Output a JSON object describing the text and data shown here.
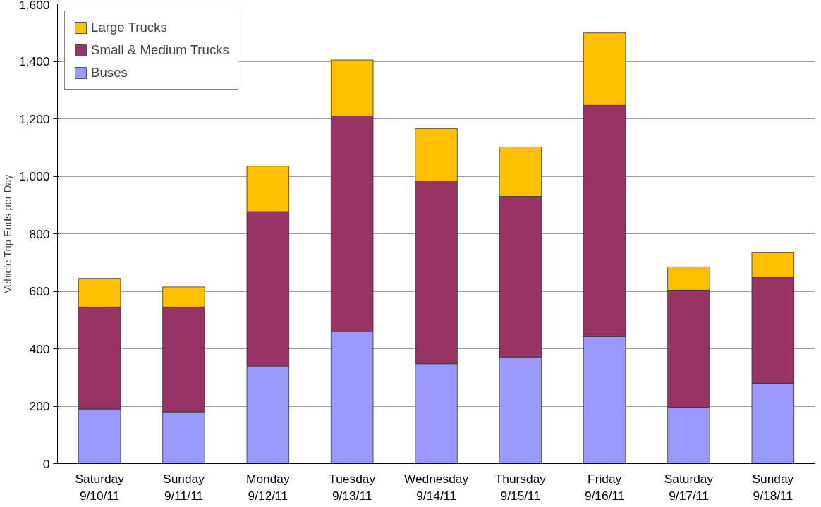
{
  "chart_data": {
    "type": "bar",
    "stacked": true,
    "ylabel": "Vehicle Trip Ends per Day",
    "categories": [
      "Saturday\n9/10/11",
      "Sunday\n9/11/11",
      "Monday\n9/12/11",
      "Tuesday\n9/13/11",
      "Wednesday\n9/14/11",
      "Thursday\n9/15/11",
      "Friday\n9/16/11",
      "Saturday\n9/17/11",
      "Sunday\n9/18/11"
    ],
    "series": [
      {
        "name": "Buses",
        "color": "#9999ff",
        "values": [
          190,
          180,
          340,
          460,
          348,
          370,
          442,
          196,
          280
        ]
      },
      {
        "name": "Small & Medium Trucks",
        "color": "#993366",
        "values": [
          355,
          365,
          537,
          750,
          636,
          560,
          805,
          408,
          368
        ]
      },
      {
        "name": "Large Trucks",
        "color": "#ffc000",
        "values": [
          100,
          70,
          158,
          195,
          182,
          172,
          252,
          81,
          86
        ]
      }
    ],
    "ylim": [
      0,
      1600
    ],
    "yticks": [
      {
        "value": 0,
        "label": "0"
      },
      {
        "value": 200,
        "label": "200"
      },
      {
        "value": 400,
        "label": "400"
      },
      {
        "value": 600,
        "label": "600"
      },
      {
        "value": 800,
        "label": "800"
      },
      {
        "value": 1000,
        "label": "1,000"
      },
      {
        "value": 1200,
        "label": "1,200"
      },
      {
        "value": 1400,
        "label": "1,400"
      },
      {
        "value": 1600,
        "label": "1,600"
      }
    ],
    "grid": "y",
    "legend": "top left"
  }
}
